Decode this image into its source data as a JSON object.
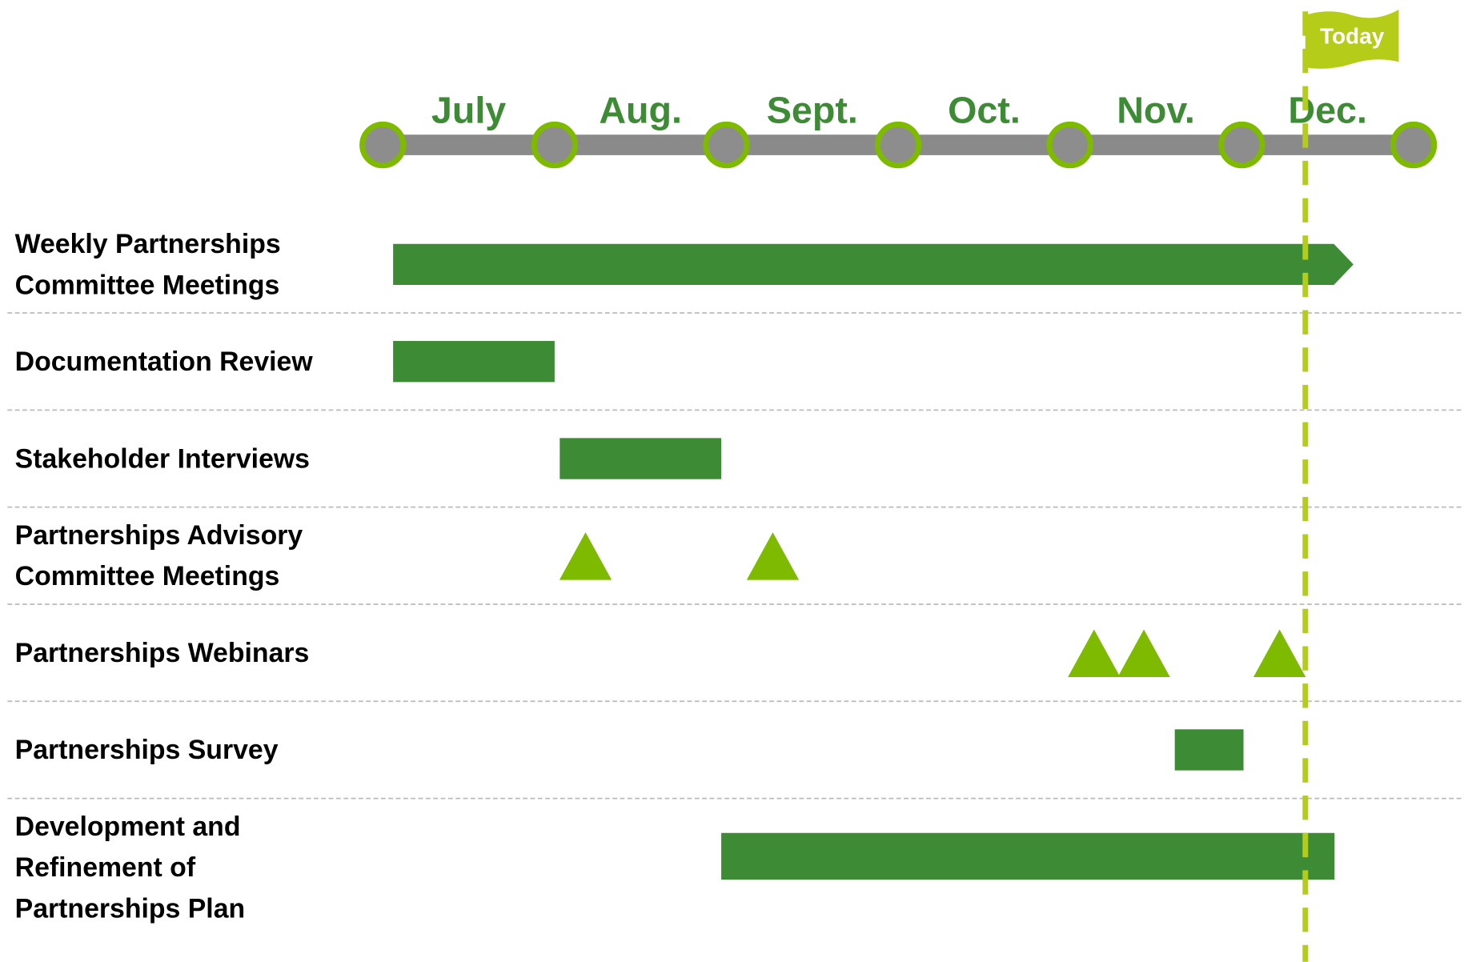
{
  "chart_data": {
    "type": "gantt",
    "categories": [
      "July",
      "Aug.",
      "Sept.",
      "Oct.",
      "Nov.",
      "Dec."
    ],
    "xlim": [
      0,
      6
    ],
    "xticks": [
      0,
      1,
      2,
      3,
      4,
      5,
      6
    ],
    "today": {
      "label": "Today",
      "value": 5.37
    },
    "bar_color": "#3d8b35",
    "milestone_color": "#7dba00",
    "today_color": "#b5cc18",
    "tasks": [
      {
        "label": [
          "Weekly Partnerships",
          "Committee Meetings"
        ],
        "start": 0.06,
        "end": 5.65,
        "arrow": true
      },
      {
        "label": [
          "Documentation Review"
        ],
        "start": 0.06,
        "end": 1.0
      },
      {
        "label": [
          "Stakeholder Interviews"
        ],
        "start": 1.03,
        "end": 1.97
      },
      {
        "label": [
          "Partnerships Advisory",
          "Committee Meetings"
        ],
        "milestones": [
          1.18,
          2.27
        ]
      },
      {
        "label": [
          "Partnerships Webinars"
        ],
        "milestones": [
          4.14,
          4.43,
          5.22
        ]
      },
      {
        "label": [
          "Partnerships Survey"
        ],
        "start": 4.61,
        "end": 5.01
      },
      {
        "label": [
          "Development and",
          "Refinement of",
          "Partnerships Plan"
        ],
        "start": 1.97,
        "end": 5.54
      }
    ]
  }
}
